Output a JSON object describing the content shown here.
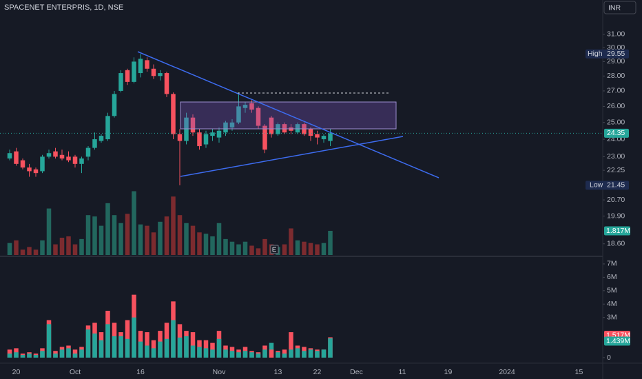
{
  "chart_data": [
    {
      "type": "candlestick",
      "title": "SPACENET ENTERPRIS, 1D, NSE",
      "currency": "INR",
      "log_scale": true,
      "categories": [
        null,
        "20",
        null,
        null,
        null,
        null,
        null,
        null,
        null,
        null,
        "Oct",
        null,
        null,
        null,
        null,
        null,
        null,
        null,
        null,
        null,
        "16",
        null,
        null,
        null,
        null,
        null,
        null,
        null,
        null,
        null,
        null,
        null,
        "Nov",
        null,
        null,
        null,
        null,
        null,
        null,
        null,
        null,
        "13",
        null,
        null,
        null,
        null,
        null,
        "22",
        null,
        null,
        null,
        null,
        null,
        "Dec",
        null,
        null,
        null,
        null,
        null,
        null,
        "11",
        null,
        null,
        null,
        null,
        null,
        null,
        "19",
        null,
        null,
        null,
        null,
        null,
        null,
        null,
        null,
        "2024",
        null,
        null,
        null,
        null,
        null,
        null,
        null,
        null,
        null,
        null,
        "15"
      ],
      "open": [
        22.9,
        23.3,
        22.8,
        22.4,
        22.3,
        22.2,
        23.0,
        23.3,
        23.1,
        23.0,
        23.0,
        22.6,
        23.0,
        23.5,
        23.9,
        24.0,
        25.4,
        27.0,
        28.4,
        27.6,
        28.2,
        29.1,
        28.5,
        28.0,
        28.2,
        26.8,
        24.3,
        23.9,
        25.3,
        24.4,
        23.7,
        24.2,
        24.1,
        24.4,
        24.7,
        25.0,
        25.9,
        26.2,
        25.9,
        24.8,
        25.3,
        24.3,
        24.9,
        24.7,
        24.4,
        24.9,
        24.6,
        24.3,
        24.0,
        23.9,
        null,
        null,
        null,
        null,
        null,
        null,
        null,
        null,
        null,
        null,
        null,
        null,
        null,
        null,
        null,
        null,
        null,
        null,
        null,
        null,
        null,
        null,
        null,
        null,
        null,
        null,
        null,
        null,
        null,
        null,
        null,
        null,
        null,
        null,
        null,
        null,
        null,
        null
      ],
      "high": [
        23.4,
        23.5,
        22.9,
        22.6,
        22.4,
        23.1,
        23.4,
        23.5,
        23.4,
        23.3,
        23.1,
        23.0,
        23.6,
        24.4,
        24.3,
        25.6,
        27.0,
        28.4,
        28.5,
        29.3,
        29.55,
        29.3,
        28.8,
        28.4,
        28.3,
        26.9,
        24.6,
        25.6,
        25.5,
        24.6,
        24.5,
        24.6,
        24.7,
        25.1,
        25.2,
        26.9,
        26.3,
        26.4,
        26.0,
        24.9,
        25.4,
        25.0,
        25.0,
        24.9,
        25.0,
        25.0,
        24.7,
        24.5,
        24.3,
        24.6,
        null,
        null,
        null,
        null,
        null,
        null,
        null,
        null,
        null,
        null,
        null,
        null,
        null,
        null,
        null,
        null,
        null,
        null,
        null,
        null,
        null,
        null,
        null,
        null,
        null,
        null,
        null,
        null,
        null,
        null,
        null,
        null,
        null,
        null,
        null,
        null,
        null,
        null
      ],
      "low": [
        22.8,
        22.5,
        22.3,
        21.9,
        21.9,
        22.1,
        22.9,
        22.9,
        22.8,
        22.7,
        22.4,
        22.1,
        22.8,
        23.4,
        23.8,
        23.9,
        25.3,
        26.9,
        27.4,
        27.5,
        27.9,
        28.3,
        27.8,
        27.7,
        26.6,
        24.0,
        21.45,
        23.7,
        24.2,
        23.4,
        23.5,
        23.9,
        23.8,
        24.2,
        24.5,
        24.9,
        25.6,
        25.6,
        24.6,
        23.2,
        24.1,
        24.2,
        24.3,
        24.3,
        24.3,
        24.2,
        23.9,
        23.7,
        23.8,
        23.6,
        null,
        null,
        null,
        null,
        null,
        null,
        null,
        null,
        null,
        null,
        null,
        null,
        null,
        null,
        null,
        null,
        null,
        null,
        null,
        null,
        null,
        null,
        null,
        null,
        null,
        null,
        null,
        null,
        null,
        null,
        null,
        null,
        null,
        null,
        null,
        null,
        null,
        null
      ],
      "close": [
        23.2,
        22.6,
        22.4,
        22.2,
        22.1,
        23.0,
        23.2,
        23.0,
        22.9,
        22.8,
        22.6,
        22.9,
        23.5,
        24.0,
        24.2,
        25.4,
        26.8,
        28.2,
        27.6,
        29.0,
        29.2,
        28.5,
        28.0,
        28.2,
        26.8,
        24.3,
        23.9,
        25.3,
        24.4,
        23.6,
        24.3,
        24.4,
        24.5,
        25.0,
        25.0,
        26.0,
        26.1,
        25.8,
        24.8,
        23.4,
        24.3,
        24.9,
        24.4,
        24.5,
        24.9,
        24.3,
        24.2,
        24.1,
        24.2,
        24.35,
        null,
        null,
        null,
        null,
        null,
        null,
        null,
        null,
        null,
        null,
        null,
        null,
        null,
        null,
        null,
        null,
        null,
        null,
        null,
        null,
        null,
        null,
        null,
        null,
        null,
        null,
        null,
        null,
        null,
        null,
        null,
        null,
        null,
        null,
        null,
        null,
        null,
        null
      ],
      "volume": [
        0.9,
        1.1,
        0.4,
        0.6,
        0.4,
        1.1,
        3.5,
        0.8,
        1.3,
        1.4,
        0.8,
        1.2,
        3.0,
        2.9,
        2.2,
        3.9,
        3.0,
        2.4,
        3.1,
        4.8,
        2.3,
        2.2,
        1.7,
        2.5,
        2.9,
        4.4,
        3.0,
        2.4,
        2.2,
        1.7,
        1.6,
        1.4,
        2.4,
        1.2,
        1.0,
        0.8,
        1.0,
        0.7,
        0.5,
        1.2,
        0.8,
        0.6,
        0.8,
        2.0,
        1.1,
        1.0,
        0.9,
        0.8,
        0.9,
        1.817,
        null,
        null,
        null,
        null,
        null,
        null,
        null,
        null,
        null,
        null,
        null,
        null,
        null,
        null,
        null,
        null,
        null,
        null,
        null,
        null,
        null,
        null,
        null,
        null,
        null,
        null,
        null,
        null,
        null,
        null,
        null,
        null,
        null,
        null,
        null,
        null,
        null,
        null
      ],
      "last_volume_label": "1.817M",
      "high_label": "High",
      "low_label": "Low",
      "up_color": "#26a69a",
      "down_color": "#f7525f",
      "volume_up_color": "#22675e",
      "volume_down_color": "#7c2b2f",
      "ylim": [
        18.1,
        33.7
      ],
      "volume_lim": [
        0,
        19.2
      ],
      "yticks": [
        {
          "value": 31,
          "label": "31.00"
        },
        {
          "value": 30,
          "label": "30.00"
        },
        {
          "value": 29,
          "label": "29.00"
        },
        {
          "value": 28,
          "label": "28.00"
        },
        {
          "value": 27,
          "label": "27.00"
        },
        {
          "value": 26,
          "label": "26.00"
        },
        {
          "value": 25,
          "label": "25.00"
        },
        {
          "value": 24,
          "label": "24.00"
        },
        {
          "value": 23,
          "label": "23.00"
        },
        22.25,
        {
          "value": 20.7,
          "label": "20.70"
        },
        {
          "value": 19.9,
          "label": "19.90"
        },
        {
          "value": 18.6,
          "label": "18.60"
        }
      ]
    },
    {
      "type": "bar",
      "series": [
        {
          "color": "#f7525f",
          "last_label": "1.517M",
          "values": [
            0.6,
            0.7,
            0.3,
            0.4,
            0.3,
            0.7,
            2.8,
            0.5,
            0.8,
            0.9,
            0.6,
            0.8,
            2.4,
            2.6,
            1.9,
            3.5,
            2.6,
            1.9,
            2.8,
            4.7,
            2.0,
            1.9,
            1.3,
            2.0,
            2.6,
            4.2,
            2.5,
            2.0,
            1.9,
            1.3,
            1.3,
            1.1,
            2.0,
            0.9,
            0.8,
            0.6,
            0.8,
            0.5,
            0.4,
            0.9,
            0.6,
            0.5,
            0.6,
            1.9,
            0.9,
            0.8,
            0.7,
            0.6,
            0.6,
            1.517
          ]
        },
        {
          "color": "#26a69a",
          "last_label": "1.439M",
          "values": [
            0.3,
            0.4,
            0.2,
            0.3,
            0.2,
            0.5,
            2.5,
            0.3,
            0.6,
            0.7,
            0.3,
            0.6,
            2.1,
            1.8,
            1.3,
            2.5,
            1.6,
            1.6,
            1.4,
            3.0,
            1.2,
            0.9,
            0.7,
            1.2,
            1.4,
            2.8,
            1.5,
            1.6,
            0.9,
            0.8,
            0.7,
            0.6,
            1.4,
            0.6,
            0.5,
            0.4,
            0.5,
            0.4,
            0.3,
            0.6,
            1.1,
            0.4,
            0.3,
            0.6,
            0.7,
            0.5,
            0.6,
            0.5,
            0.6,
            1.439
          ]
        }
      ],
      "ylim": [
        -0.31,
        7.41
      ],
      "yticks": [
        0,
        {
          "value": 3,
          "label": "3M"
        },
        {
          "value": 4,
          "label": "4M"
        },
        {
          "value": 5,
          "label": "5M"
        },
        {
          "value": 6,
          "label": "6M"
        },
        {
          "value": 7,
          "label": "7M"
        }
      ]
    }
  ]
}
